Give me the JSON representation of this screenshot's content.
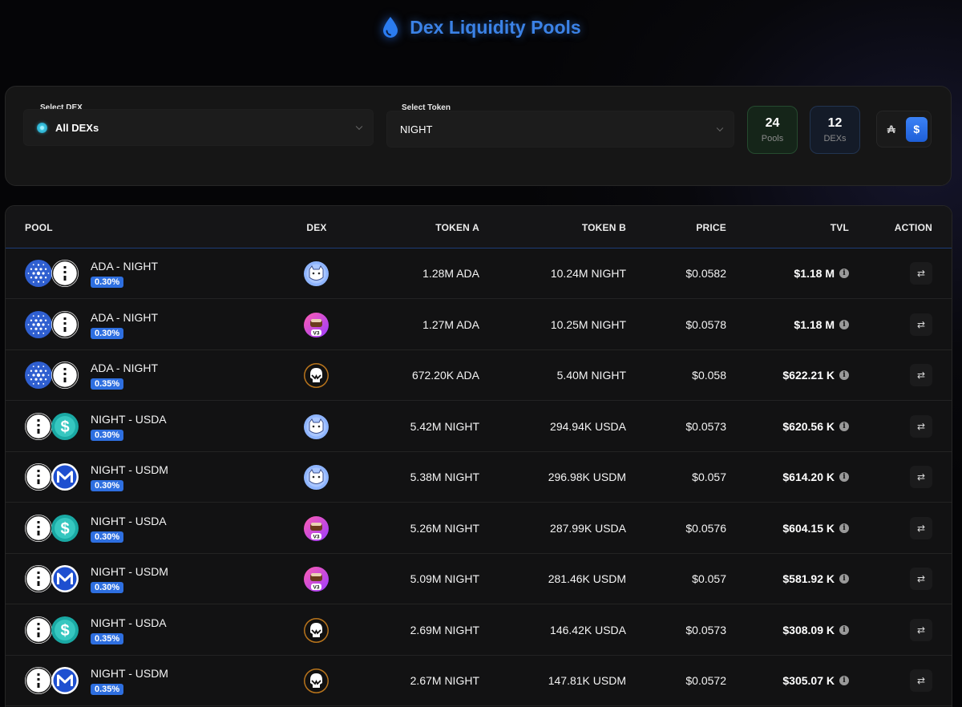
{
  "header": {
    "title": "Dex Liquidity Pools",
    "icon": "droplet-icon"
  },
  "filters": {
    "dex_label": "Select DEX",
    "dex_value": "All DEXs",
    "token_label": "Select Token",
    "token_value": "NIGHT"
  },
  "stats": {
    "pools_count": "24",
    "pools_label": "Pools",
    "dexs_count": "12",
    "dexs_label": "DEXs"
  },
  "currency_toggle": {
    "ada_symbol": "₳",
    "usd_symbol": "$",
    "active": "usd"
  },
  "table": {
    "columns": {
      "pool": "POOL",
      "dex": "DEX",
      "token_a": "TOKEN A",
      "token_b": "TOKEN B",
      "price": "PRICE",
      "tvl": "TVL",
      "action": "ACTION"
    },
    "rows": [
      {
        "pair": "ADA - NIGHT",
        "fee": "0.30%",
        "token_a_icon": "ada",
        "token_b_icon": "night",
        "dex_icon": "cat",
        "token_a": "1.28M ADA",
        "token_b": "10.24M NIGHT",
        "price": "$0.0582",
        "tvl": "$1.18 M"
      },
      {
        "pair": "ADA - NIGHT",
        "fee": "0.30%",
        "token_a_icon": "ada",
        "token_b_icon": "night",
        "dex_icon": "v3",
        "token_a": "1.27M ADA",
        "token_b": "10.25M NIGHT",
        "price": "$0.0578",
        "tvl": "$1.18 M"
      },
      {
        "pair": "ADA - NIGHT",
        "fee": "0.35%",
        "token_a_icon": "ada",
        "token_b_icon": "night",
        "dex_icon": "skull",
        "token_a": "672.20K ADA",
        "token_b": "5.40M NIGHT",
        "price": "$0.058",
        "tvl": "$622.21 K"
      },
      {
        "pair": "NIGHT - USDA",
        "fee": "0.30%",
        "token_a_icon": "night",
        "token_b_icon": "usda",
        "dex_icon": "cat",
        "token_a": "5.42M NIGHT",
        "token_b": "294.94K USDA",
        "price": "$0.0573",
        "tvl": "$620.56 K"
      },
      {
        "pair": "NIGHT - USDM",
        "fee": "0.30%",
        "token_a_icon": "night",
        "token_b_icon": "usdm",
        "dex_icon": "cat",
        "token_a": "5.38M NIGHT",
        "token_b": "296.98K USDM",
        "price": "$0.057",
        "tvl": "$614.20 K"
      },
      {
        "pair": "NIGHT - USDA",
        "fee": "0.30%",
        "token_a_icon": "night",
        "token_b_icon": "usda",
        "dex_icon": "v3",
        "token_a": "5.26M NIGHT",
        "token_b": "287.99K USDA",
        "price": "$0.0576",
        "tvl": "$604.15 K"
      },
      {
        "pair": "NIGHT - USDM",
        "fee": "0.30%",
        "token_a_icon": "night",
        "token_b_icon": "usdm",
        "dex_icon": "v3",
        "token_a": "5.09M NIGHT",
        "token_b": "281.46K USDM",
        "price": "$0.057",
        "tvl": "$581.92 K"
      },
      {
        "pair": "NIGHT - USDA",
        "fee": "0.35%",
        "token_a_icon": "night",
        "token_b_icon": "usda",
        "dex_icon": "skull",
        "token_a": "2.69M NIGHT",
        "token_b": "146.42K USDA",
        "price": "$0.0573",
        "tvl": "$308.09 K"
      },
      {
        "pair": "NIGHT - USDM",
        "fee": "0.35%",
        "token_a_icon": "night",
        "token_b_icon": "usdm",
        "dex_icon": "skull",
        "token_a": "2.67M NIGHT",
        "token_b": "147.81K USDM",
        "price": "$0.0572",
        "tvl": "$305.07 K"
      }
    ]
  },
  "colors": {
    "accent": "#3b82e6",
    "fee_badge": "#2e6fe0",
    "pools_bg": "#152519",
    "dexs_bg": "#141b28"
  }
}
